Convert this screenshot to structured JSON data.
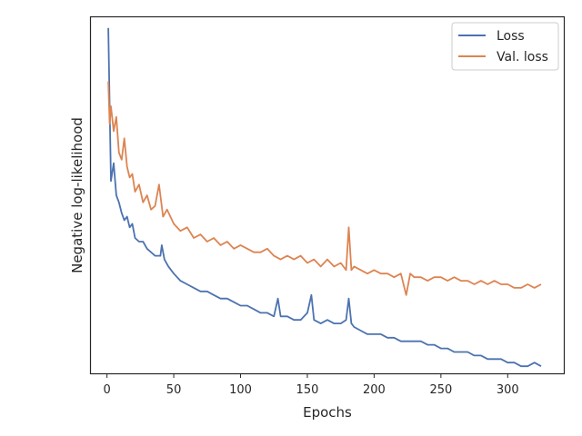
{
  "chart_data": {
    "type": "line",
    "title": "",
    "xlabel": "Epochs",
    "ylabel": "Negative log-likelihood",
    "xlim": [
      -12,
      342
    ],
    "ylim": [
      0,
      100
    ],
    "y_tick_labels_shown": false,
    "grid": false,
    "legend_position": "top-right",
    "x_ticks": [
      0,
      50,
      100,
      150,
      200,
      250,
      300
    ],
    "series": [
      {
        "name": "Loss",
        "color": "#4c72b0",
        "points": [
          [
            1,
            97
          ],
          [
            3,
            54
          ],
          [
            5,
            59
          ],
          [
            7,
            50
          ],
          [
            9,
            48
          ],
          [
            11,
            45
          ],
          [
            13,
            43
          ],
          [
            15,
            44
          ],
          [
            17,
            41
          ],
          [
            19,
            42
          ],
          [
            21,
            38
          ],
          [
            24,
            37
          ],
          [
            27,
            37
          ],
          [
            30,
            35
          ],
          [
            33,
            34
          ],
          [
            36,
            33
          ],
          [
            40,
            33
          ],
          [
            41,
            36
          ],
          [
            43,
            32
          ],
          [
            46,
            30
          ],
          [
            50,
            28
          ],
          [
            55,
            26
          ],
          [
            60,
            25
          ],
          [
            65,
            24
          ],
          [
            70,
            23
          ],
          [
            75,
            23
          ],
          [
            80,
            22
          ],
          [
            85,
            21
          ],
          [
            90,
            21
          ],
          [
            95,
            20
          ],
          [
            100,
            19
          ],
          [
            105,
            19
          ],
          [
            110,
            18
          ],
          [
            115,
            17
          ],
          [
            120,
            17
          ],
          [
            125,
            16
          ],
          [
            128,
            21
          ],
          [
            130,
            16
          ],
          [
            135,
            16
          ],
          [
            140,
            15
          ],
          [
            145,
            15
          ],
          [
            150,
            17
          ],
          [
            153,
            22
          ],
          [
            155,
            15
          ],
          [
            160,
            14
          ],
          [
            165,
            15
          ],
          [
            170,
            14
          ],
          [
            175,
            14
          ],
          [
            179,
            15
          ],
          [
            181,
            21
          ],
          [
            183,
            14
          ],
          [
            185,
            13
          ],
          [
            190,
            12
          ],
          [
            195,
            11
          ],
          [
            200,
            11
          ],
          [
            205,
            11
          ],
          [
            210,
            10
          ],
          [
            215,
            10
          ],
          [
            220,
            9
          ],
          [
            225,
            9
          ],
          [
            230,
            9
          ],
          [
            235,
            9
          ],
          [
            240,
            8
          ],
          [
            245,
            8
          ],
          [
            250,
            7
          ],
          [
            255,
            7
          ],
          [
            260,
            6
          ],
          [
            265,
            6
          ],
          [
            270,
            6
          ],
          [
            275,
            5
          ],
          [
            280,
            5
          ],
          [
            285,
            4
          ],
          [
            290,
            4
          ],
          [
            295,
            4
          ],
          [
            300,
            3
          ],
          [
            305,
            3
          ],
          [
            310,
            2
          ],
          [
            315,
            2
          ],
          [
            320,
            3
          ],
          [
            325,
            2
          ]
        ]
      },
      {
        "name": "Val. loss",
        "color": "#dd8452",
        "points": [
          [
            1,
            82
          ],
          [
            2,
            70
          ],
          [
            3,
            75
          ],
          [
            5,
            68
          ],
          [
            7,
            72
          ],
          [
            9,
            62
          ],
          [
            11,
            60
          ],
          [
            13,
            66
          ],
          [
            15,
            58
          ],
          [
            17,
            55
          ],
          [
            19,
            56
          ],
          [
            21,
            51
          ],
          [
            24,
            53
          ],
          [
            27,
            48
          ],
          [
            30,
            50
          ],
          [
            33,
            46
          ],
          [
            36,
            47
          ],
          [
            39,
            53
          ],
          [
            42,
            44
          ],
          [
            45,
            46
          ],
          [
            50,
            42
          ],
          [
            55,
            40
          ],
          [
            60,
            41
          ],
          [
            65,
            38
          ],
          [
            70,
            39
          ],
          [
            75,
            37
          ],
          [
            80,
            38
          ],
          [
            85,
            36
          ],
          [
            90,
            37
          ],
          [
            95,
            35
          ],
          [
            100,
            36
          ],
          [
            105,
            35
          ],
          [
            110,
            34
          ],
          [
            115,
            34
          ],
          [
            120,
            35
          ],
          [
            125,
            33
          ],
          [
            130,
            32
          ],
          [
            135,
            33
          ],
          [
            140,
            32
          ],
          [
            145,
            33
          ],
          [
            150,
            31
          ],
          [
            155,
            32
          ],
          [
            160,
            30
          ],
          [
            165,
            32
          ],
          [
            170,
            30
          ],
          [
            175,
            31
          ],
          [
            179,
            29
          ],
          [
            181,
            41
          ],
          [
            183,
            29
          ],
          [
            185,
            30
          ],
          [
            190,
            29
          ],
          [
            195,
            28
          ],
          [
            200,
            29
          ],
          [
            205,
            28
          ],
          [
            210,
            28
          ],
          [
            215,
            27
          ],
          [
            220,
            28
          ],
          [
            224,
            22
          ],
          [
            227,
            28
          ],
          [
            230,
            27
          ],
          [
            235,
            27
          ],
          [
            240,
            26
          ],
          [
            245,
            27
          ],
          [
            250,
            27
          ],
          [
            255,
            26
          ],
          [
            260,
            27
          ],
          [
            265,
            26
          ],
          [
            270,
            26
          ],
          [
            275,
            25
          ],
          [
            280,
            26
          ],
          [
            285,
            25
          ],
          [
            290,
            26
          ],
          [
            295,
            25
          ],
          [
            300,
            25
          ],
          [
            305,
            24
          ],
          [
            310,
            24
          ],
          [
            315,
            25
          ],
          [
            320,
            24
          ],
          [
            325,
            25
          ]
        ]
      }
    ]
  }
}
